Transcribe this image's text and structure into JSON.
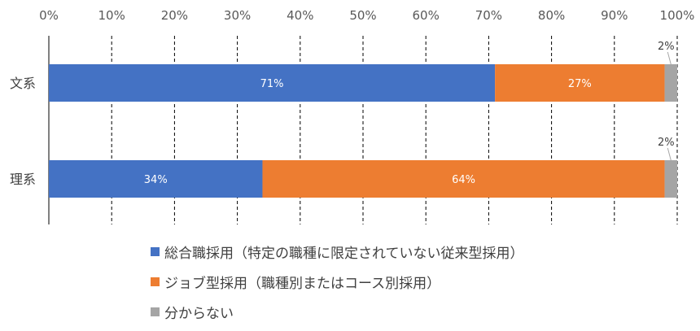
{
  "chart_data": {
    "type": "bar",
    "orientation": "horizontal",
    "stacked": true,
    "categories": [
      "文系",
      "理系"
    ],
    "series": [
      {
        "name": "総合職採用（特定の職種に限定されていない従来型採用）",
        "values": [
          71,
          34
        ],
        "labels": [
          "71%",
          "34%"
        ],
        "color": "#4472c4"
      },
      {
        "name": "ジョブ型採用（職種別またはコース別採用）",
        "values": [
          27,
          64
        ],
        "labels": [
          "27%",
          "64%"
        ],
        "color": "#ed7d31"
      },
      {
        "name": "分からない",
        "values": [
          2,
          2
        ],
        "labels": [
          "2%",
          "2%"
        ],
        "color": "#a5a5a5"
      }
    ],
    "xlim": [
      0,
      100
    ],
    "xticks": [
      "0%",
      "10%",
      "20%",
      "30%",
      "40%",
      "50%",
      "60%",
      "70%",
      "80%",
      "90%",
      "100%"
    ],
    "grid": "vertical dashed",
    "legend_position": "bottom"
  }
}
